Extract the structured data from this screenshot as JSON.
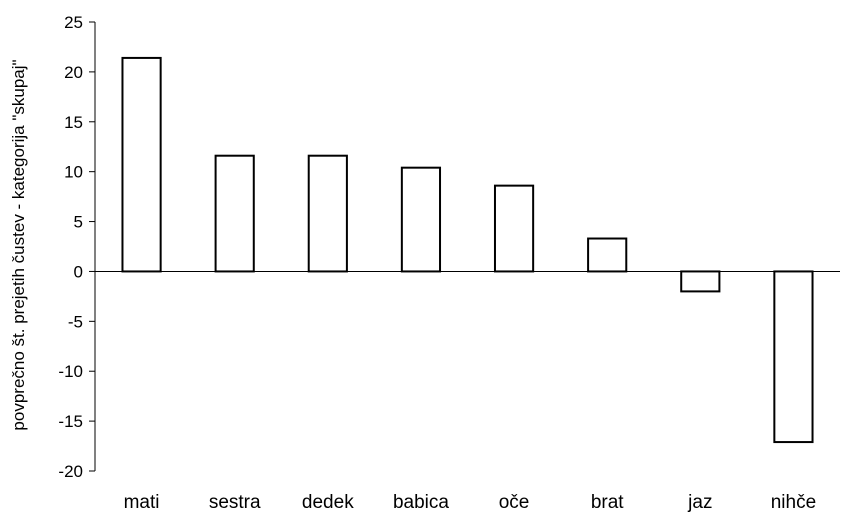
{
  "chart_data": {
    "type": "bar",
    "title": "",
    "xlabel": "",
    "ylabel": "povprečno št. prejetih čustev - kategorija \"skupaj\"",
    "categories": [
      "mati",
      "sestra",
      "dedek",
      "babica",
      "oče",
      "brat",
      "jaz",
      "nihče"
    ],
    "values": [
      21.4,
      11.6,
      11.6,
      10.4,
      8.6,
      3.3,
      -2.0,
      -17.1
    ],
    "ylim": [
      -20,
      25
    ],
    "yticks": [
      "25",
      "20",
      "15",
      "10",
      "5",
      "0",
      "-5",
      "-10",
      "-15",
      "-20"
    ],
    "grid": false,
    "legend": "none",
    "bar_fill": "#ffffff",
    "bar_stroke": "#000000"
  }
}
